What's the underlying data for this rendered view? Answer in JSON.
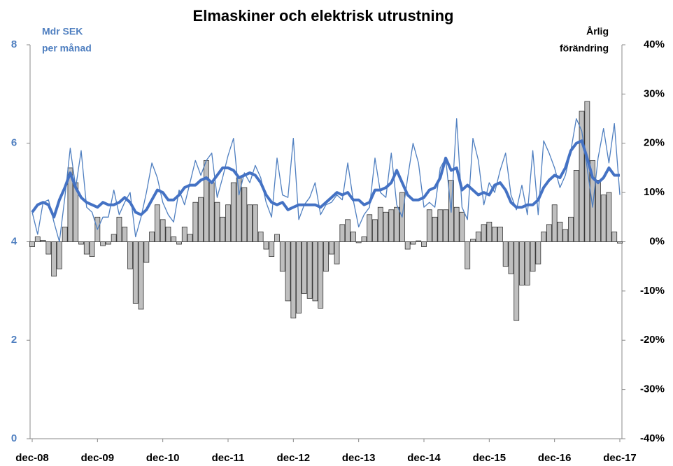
{
  "chart_data": {
    "type": "combo",
    "title": "Elmaskiner och elektrisk utrustning",
    "ylabel": [
      "Mdr SEK",
      "per månad"
    ],
    "y2label": [
      "Årlig",
      "förändring"
    ],
    "categories": [
      "dec-08",
      null,
      null,
      null,
      null,
      null,
      null,
      null,
      null,
      null,
      null,
      null,
      "dec-09",
      null,
      null,
      null,
      null,
      null,
      null,
      null,
      null,
      null,
      null,
      null,
      "dec-10",
      null,
      null,
      null,
      null,
      null,
      null,
      null,
      null,
      null,
      null,
      null,
      "dec-11",
      null,
      null,
      null,
      null,
      null,
      null,
      null,
      null,
      null,
      null,
      null,
      "dec-12",
      null,
      null,
      null,
      null,
      null,
      null,
      null,
      null,
      null,
      null,
      null,
      "dec-13",
      null,
      null,
      null,
      null,
      null,
      null,
      null,
      null,
      null,
      null,
      null,
      "dec-14",
      null,
      null,
      null,
      null,
      null,
      null,
      null,
      null,
      null,
      null,
      null,
      "dec-15",
      null,
      null,
      null,
      null,
      null,
      null,
      null,
      null,
      null,
      null,
      null,
      "dec-16",
      null,
      null,
      null,
      null,
      null,
      null,
      null,
      null,
      null,
      null,
      null,
      "dec-17"
    ],
    "ylim": [
      0,
      8
    ],
    "yticks": [
      0,
      2,
      4,
      6,
      8
    ],
    "y2lim": [
      -40,
      40
    ],
    "y2ticks": [
      {
        "value": -40,
        "label": "-40%"
      },
      {
        "value": -30,
        "label": "-30%"
      },
      {
        "value": -20,
        "label": "-20%"
      },
      {
        "value": -10,
        "label": "-10%"
      },
      {
        "value": 0,
        "label": "0%"
      },
      {
        "value": 10,
        "label": "10%"
      },
      {
        "value": 20,
        "label": "20%"
      },
      {
        "value": 30,
        "label": "30%"
      },
      {
        "value": 40,
        "label": "40%"
      }
    ],
    "series": [
      {
        "type": "bar",
        "axis": "y2",
        "color": "#bfbfbf",
        "values": [
          -1,
          1,
          0.3,
          -2.5,
          -7,
          -5.5,
          3,
          15,
          12,
          -0.5,
          -2.5,
          -3,
          5,
          -0.8,
          -0.5,
          1.5,
          5,
          3,
          -5.5,
          -12.5,
          -13.7,
          -4.2,
          2,
          7.5,
          4.5,
          3,
          1,
          -0.5,
          3,
          1.5,
          8,
          9,
          16.5,
          12,
          8,
          5,
          7.5,
          12,
          13,
          11,
          7.5,
          7.5,
          2,
          -1.5,
          -3,
          1.5,
          -6,
          -12,
          -15.5,
          -14.5,
          -10.5,
          -11.5,
          -12,
          -13.5,
          -6,
          -2.5,
          -4.5,
          3.5,
          4.5,
          2,
          -0.2,
          1,
          5.5,
          4.5,
          7,
          6,
          6.5,
          7,
          10,
          -1.5,
          -0.5,
          0.2,
          -1,
          6.5,
          5,
          6.5,
          6.5,
          12.5,
          7,
          6,
          -5.5,
          0.5,
          2,
          3.5,
          4,
          3,
          3,
          -5,
          -6.5,
          -16,
          -8.8,
          -8.8,
          -6,
          -4.5,
          2,
          3.5,
          7.5,
          4,
          2.5,
          5,
          14.5,
          26.5,
          28.5,
          16.5,
          12.5,
          9.5,
          10,
          2,
          -0.3
        ]
      },
      {
        "type": "line",
        "axis": "y",
        "color": "#4f7fc0",
        "width": 1.3,
        "values": [
          4.6,
          4.15,
          4.8,
          4.85,
          4.4,
          4.0,
          4.9,
          5.9,
          5.1,
          5.85,
          4.7,
          4.6,
          4.25,
          4.5,
          4.5,
          5.05,
          4.55,
          4.8,
          5.0,
          4.1,
          4.5,
          5.0,
          5.6,
          5.3,
          4.8,
          4.55,
          4.4,
          5.05,
          4.75,
          5.2,
          5.65,
          5.35,
          5.65,
          5.8,
          4.9,
          5.3,
          5.75,
          6.1,
          4.95,
          5.4,
          5.2,
          5.55,
          5.3,
          4.8,
          4.5,
          5.7,
          4.95,
          4.9,
          6.1,
          4.45,
          4.75,
          4.9,
          5.2,
          4.55,
          4.75,
          4.8,
          4.95,
          4.85,
          5.6,
          4.85,
          4.3,
          4.55,
          4.7,
          5.7,
          5.0,
          4.9,
          5.8,
          4.75,
          4.5,
          5.3,
          6.0,
          5.6,
          4.7,
          4.8,
          4.7,
          5.5,
          5.7,
          4.6,
          6.5,
          4.7,
          4.45,
          6.1,
          5.65,
          4.75,
          5.2,
          5.0,
          5.45,
          5.8,
          4.95,
          4.65,
          5.15,
          4.55,
          5.85,
          4.55,
          6.05,
          5.8,
          5.5,
          5.1,
          5.35,
          5.85,
          6.5,
          6.25,
          5.5,
          4.7,
          5.7,
          6.3,
          5.6,
          6.4,
          4.95
        ]
      },
      {
        "type": "line",
        "axis": "y",
        "color": "#4472c4",
        "width": 4,
        "values": [
          4.6,
          4.75,
          4.8,
          4.75,
          4.5,
          4.85,
          5.1,
          5.4,
          5.1,
          4.9,
          4.8,
          4.75,
          4.7,
          4.8,
          4.75,
          4.75,
          4.8,
          4.9,
          4.8,
          4.6,
          4.55,
          4.65,
          4.85,
          5.05,
          5.0,
          4.85,
          4.85,
          4.95,
          5.1,
          5.15,
          5.15,
          5.25,
          5.3,
          5.2,
          5.35,
          5.5,
          5.5,
          5.45,
          5.3,
          5.35,
          5.4,
          5.35,
          5.2,
          4.95,
          4.8,
          4.75,
          4.8,
          4.65,
          4.7,
          4.75,
          4.75,
          4.75,
          4.75,
          4.7,
          4.8,
          4.9,
          5.0,
          4.95,
          5.0,
          4.85,
          4.85,
          4.75,
          4.8,
          5.05,
          5.05,
          5.1,
          5.2,
          5.45,
          5.2,
          4.95,
          4.85,
          4.85,
          4.9,
          5.05,
          5.1,
          5.3,
          5.7,
          5.45,
          5.5,
          5.05,
          5.15,
          5.05,
          4.95,
          5.0,
          4.95,
          5.15,
          5.2,
          5.05,
          4.8,
          4.7,
          4.7,
          4.75,
          4.75,
          4.85,
          5.1,
          5.25,
          5.35,
          5.3,
          5.5,
          5.85,
          6.0,
          6.05,
          5.7,
          5.3,
          5.2,
          5.3,
          5.5,
          5.35,
          5.35
        ]
      }
    ]
  }
}
